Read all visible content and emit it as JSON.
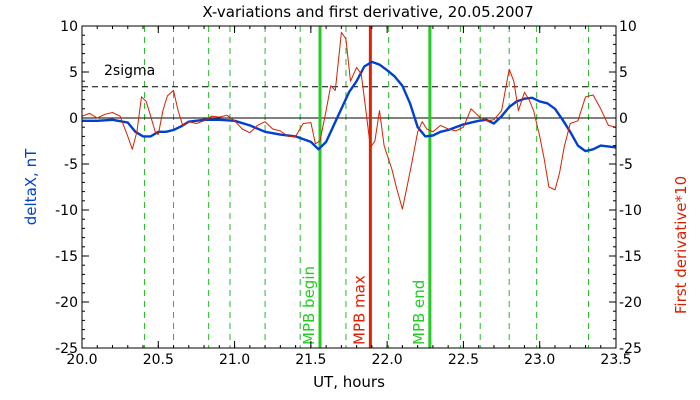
{
  "chart_data": {
    "type": "line",
    "title": "X-variations and first derivative, 20.05.2007",
    "xlabel": "UT, hours",
    "ylabel_left": "deltaX, nT",
    "ylabel_right": "First derivative*10",
    "xlim": [
      20.0,
      23.5
    ],
    "ylim": [
      -25,
      10
    ],
    "x_ticks": [
      "20.0",
      "20.5",
      "21.0",
      "21.5",
      "22.0",
      "22.5",
      "23.0",
      "23.5"
    ],
    "y_ticks": [
      "10",
      "5",
      "0",
      "-5",
      "-10",
      "-15",
      "-20",
      "-25"
    ],
    "sigma_label": "2sigma",
    "sigma_level": 3.4,
    "zero_line": 0,
    "colors": {
      "deltaX": "#0040d0",
      "derivative": "#d82000",
      "markers_green": "#22cc22",
      "marker_red": "#e02000",
      "dashed_green": "#22bb22"
    },
    "dashed_lines_x": [
      20.41,
      20.6,
      20.83,
      20.97,
      21.2,
      21.43,
      21.73,
      22.01,
      22.48,
      22.61,
      22.8,
      22.98,
      23.32
    ],
    "markers": [
      {
        "label": "MPB begin",
        "x": 21.56,
        "color": "#22cc22"
      },
      {
        "label": "MPB max",
        "x": 21.89,
        "color": "#e02000"
      },
      {
        "label": "MPB end",
        "x": 22.28,
        "color": "#22cc22"
      }
    ],
    "series": [
      {
        "name": "deltaX",
        "color": "#0040d0",
        "x": [
          20.0,
          20.1,
          20.2,
          20.3,
          20.35,
          20.4,
          20.45,
          20.5,
          20.55,
          20.6,
          20.65,
          20.7,
          20.8,
          20.9,
          21.0,
          21.1,
          21.2,
          21.3,
          21.4,
          21.5,
          21.55,
          21.6,
          21.65,
          21.7,
          21.75,
          21.8,
          21.85,
          21.9,
          21.95,
          22.0,
          22.05,
          22.1,
          22.15,
          22.2,
          22.25,
          22.3,
          22.35,
          22.4,
          22.5,
          22.55,
          22.6,
          22.65,
          22.7,
          22.75,
          22.8,
          22.85,
          22.9,
          22.95,
          23.0,
          23.05,
          23.1,
          23.15,
          23.2,
          23.25,
          23.3,
          23.35,
          23.4,
          23.5
        ],
        "values": [
          -0.3,
          -0.3,
          -0.2,
          -0.5,
          -1.5,
          -2.0,
          -2.0,
          -1.5,
          -1.5,
          -1.3,
          -0.9,
          -0.4,
          -0.2,
          -0.2,
          -0.3,
          -0.8,
          -1.5,
          -1.8,
          -2.0,
          -2.6,
          -3.4,
          -2.6,
          -0.8,
          1.0,
          2.8,
          4.0,
          5.6,
          6.1,
          5.8,
          5.2,
          4.5,
          3.5,
          1.6,
          -1.0,
          -2.0,
          -1.9,
          -1.5,
          -1.3,
          -0.7,
          -0.5,
          -0.3,
          -0.2,
          -0.6,
          0.2,
          1.2,
          1.8,
          2.1,
          2.2,
          1.8,
          1.6,
          1.0,
          -0.2,
          -1.5,
          -3.0,
          -3.6,
          -3.4,
          -3.0,
          -3.2
        ]
      },
      {
        "name": "First derivative*10",
        "color": "#d82000",
        "x": [
          20.0,
          20.05,
          20.1,
          20.15,
          20.2,
          20.25,
          20.3,
          20.33,
          20.36,
          20.39,
          20.42,
          20.45,
          20.48,
          20.5,
          20.53,
          20.56,
          20.6,
          20.63,
          20.66,
          20.7,
          20.75,
          20.8,
          20.85,
          20.9,
          20.95,
          21.0,
          21.05,
          21.1,
          21.15,
          21.2,
          21.25,
          21.3,
          21.35,
          21.4,
          21.45,
          21.5,
          21.53,
          21.56,
          21.6,
          21.63,
          21.66,
          21.7,
          21.73,
          21.76,
          21.8,
          21.83,
          21.86,
          21.89,
          21.92,
          21.95,
          21.98,
          22.0,
          22.03,
          22.06,
          22.1,
          22.13,
          22.16,
          22.2,
          22.23,
          22.26,
          22.3,
          22.35,
          22.4,
          22.45,
          22.5,
          22.55,
          22.6,
          22.65,
          22.7,
          22.75,
          22.8,
          22.83,
          22.86,
          22.9,
          22.93,
          22.96,
          23.0,
          23.03,
          23.06,
          23.1,
          23.13,
          23.16,
          23.2,
          23.25,
          23.3,
          23.35,
          23.4,
          23.45,
          23.5
        ],
        "values": [
          0.2,
          0.5,
          0.0,
          0.4,
          0.6,
          0.2,
          -2.0,
          -3.4,
          -1.5,
          2.3,
          1.8,
          0.2,
          -1.5,
          -1.8,
          0.8,
          2.4,
          3.0,
          0.8,
          -0.8,
          -0.4,
          -0.6,
          -0.3,
          0.2,
          0.1,
          0.3,
          -0.3,
          -1.2,
          -1.6,
          -0.8,
          -0.4,
          -1.2,
          -1.4,
          -2.0,
          -2.0,
          -0.6,
          -0.5,
          -2.8,
          -2.5,
          0.8,
          3.5,
          3.0,
          9.3,
          8.6,
          4.0,
          5.5,
          4.8,
          0.9,
          -3.2,
          -2.5,
          0.8,
          -3.0,
          -4.0,
          -5.5,
          -7.5,
          -9.9,
          -7.5,
          -5.0,
          -1.5,
          -0.4,
          -1.2,
          -1.5,
          -0.8,
          -1.2,
          -1.4,
          -1.0,
          1.0,
          0.2,
          -0.3,
          -0.2,
          0.8,
          5.3,
          4.0,
          0.8,
          2.8,
          2.0,
          0.8,
          -2.0,
          -4.5,
          -7.5,
          -7.8,
          -6.0,
          -3.2,
          -0.6,
          -0.3,
          2.3,
          2.5,
          1.0,
          -0.8,
          -1.0
        ]
      }
    ]
  }
}
